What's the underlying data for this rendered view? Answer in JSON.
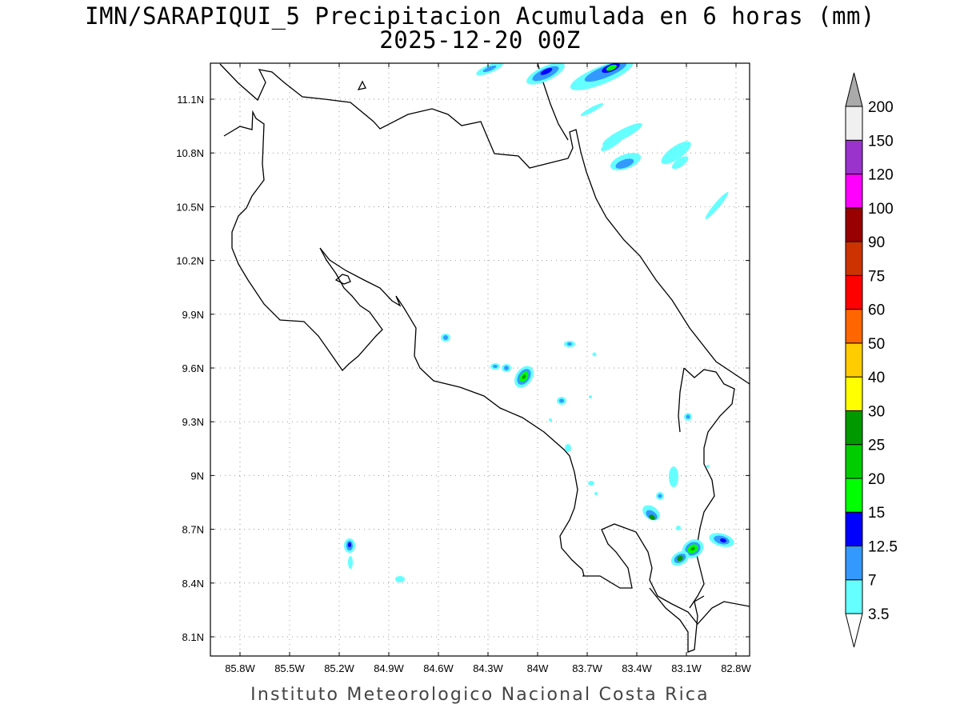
{
  "header": {
    "title_line1": "IMN/SARAPIQUI_5 Precipitacion Acumulada en 6 horas (mm)",
    "title_line2": "2025-12-20 00Z"
  },
  "footer": {
    "credit": "Instituto Meteorologico Nacional Costa Rica"
  },
  "map": {
    "lon_range": [
      -86.0,
      -83.0
    ],
    "lat_range": [
      8.0,
      11.3
    ],
    "lon_ticks": [
      {
        "value": -85.8,
        "label": "85.8W"
      },
      {
        "value": -85.5,
        "label": "85.5W"
      },
      {
        "value": -85.2,
        "label": "85.2W"
      },
      {
        "value": -84.9,
        "label": "84.9W"
      },
      {
        "value": -84.6,
        "label": "84.6W"
      },
      {
        "value": -84.3,
        "label": "84.3W"
      },
      {
        "value": -84.0,
        "label": "84W"
      },
      {
        "value": -83.7,
        "label": "83.7W"
      },
      {
        "value": -83.4,
        "label": "83.4W"
      },
      {
        "value": -83.1,
        "label": "83.1W"
      },
      {
        "value": -82.8,
        "label": "82.8W"
      }
    ],
    "lat_ticks": [
      {
        "value": 11.1,
        "label": "11.1N"
      },
      {
        "value": 10.8,
        "label": "10.8N"
      },
      {
        "value": 10.5,
        "label": "10.5N"
      },
      {
        "value": 10.2,
        "label": "10.2N"
      },
      {
        "value": 9.9,
        "label": "9.9N"
      },
      {
        "value": 9.6,
        "label": "9.6N"
      },
      {
        "value": 9.3,
        "label": "9.3N"
      },
      {
        "value": 9.0,
        "label": "9N"
      },
      {
        "value": 8.7,
        "label": "8.7N"
      },
      {
        "value": 8.4,
        "label": "8.4N"
      },
      {
        "value": 8.1,
        "label": "8.1N"
      }
    ],
    "grid": "dotted"
  },
  "colorbar": {
    "unit": "mm",
    "levels": [
      {
        "label": "3.5",
        "color": "#66ffff"
      },
      {
        "label": "7",
        "color": "#3399ff"
      },
      {
        "label": "12.5",
        "color": "#0000ff"
      },
      {
        "label": "15",
        "color": "#00ff00"
      },
      {
        "label": "20",
        "color": "#00cc00"
      },
      {
        "label": "25",
        "color": "#009900"
      },
      {
        "label": "30",
        "color": "#ffff00"
      },
      {
        "label": "40",
        "color": "#ffcc00"
      },
      {
        "label": "50",
        "color": "#ff6600"
      },
      {
        "label": "60",
        "color": "#ff0000"
      },
      {
        "label": "75",
        "color": "#cc3300"
      },
      {
        "label": "90",
        "color": "#990000"
      },
      {
        "label": "100",
        "color": "#ff00ff"
      },
      {
        "label": "120",
        "color": "#9933cc"
      },
      {
        "label": "150",
        "color": "#f0f0f0"
      },
      {
        "label": "200",
        "color": "#aaaaaa"
      }
    ],
    "colors_between": [
      "#66ffff",
      "#3399ff",
      "#0000ff",
      "#00ff00",
      "#00cc00",
      "#009900",
      "#ffff00",
      "#ffcc00",
      "#ff6600",
      "#ff0000",
      "#cc3300",
      "#990000",
      "#ff00ff",
      "#9933cc",
      "#f0f0f0"
    ],
    "over_color": "#aaaaaa",
    "under_color": "#ffffff"
  }
}
